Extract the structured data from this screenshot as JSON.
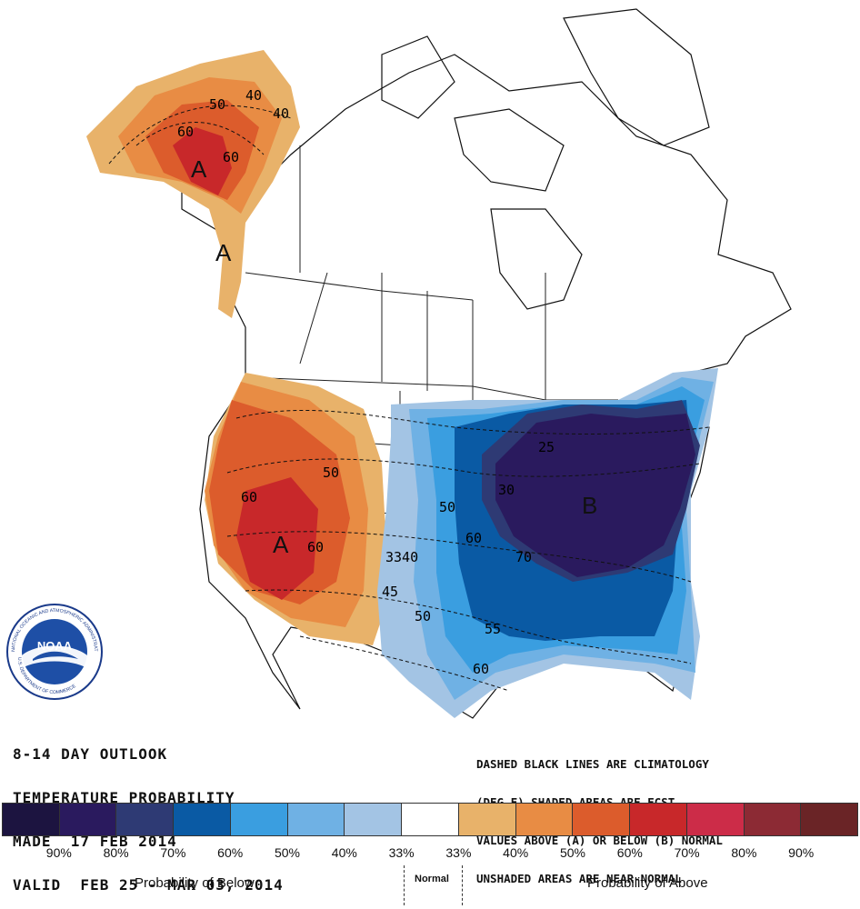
{
  "title_lines": [
    "8-14 DAY OUTLOOK",
    "TEMPERATURE PROBABILITY",
    "MADE  17 FEB 2014",
    "VALID  FEB 25 - MAR 03, 2014"
  ],
  "legend_note_lines": [
    "DASHED BLACK LINES ARE CLIMATOLOGY",
    "(DEG F) SHADED AREAS ARE FCST",
    "VALUES ABOVE (A) OR BELOW (B) NORMAL",
    "UNSHADED AREAS ARE NEAR-NORMAL"
  ],
  "logo": {
    "center_text": "NOAA",
    "ring_text": "NATIONAL OCEANIC AND ATMOSPHERIC ADMINISTRATION",
    "ring_text_bottom": "U.S. DEPARTMENT OF COMMERCE"
  },
  "map_letters": {
    "alaska_above_1": "A",
    "alaska_above_2": "A",
    "west_above": "A",
    "east_below": "B"
  },
  "map_contour_labels": {
    "ak_50": "50",
    "ak_40": "40",
    "ak_60a": "60",
    "ak_60b": "60",
    "ak_40b": "40",
    "west_50": "50",
    "west_60a": "60",
    "west_60b": "60",
    "west_45": "45",
    "mid_3340": "3340",
    "mid_50": "50",
    "mid_60": "60",
    "mid_70": "70",
    "mid_50b": "50",
    "south_55": "55",
    "south_60": "60",
    "east_30": "30",
    "east_25": "25"
  },
  "colorbar": {
    "colors": [
      "#1c1440",
      "#2a1a5e",
      "#2e3a74",
      "#0a5aa4",
      "#3a9ee0",
      "#6fb1e4",
      "#a3c4e4",
      "#ffffff",
      "#e8b26a",
      "#e88c44",
      "#dc5c2c",
      "#c8282a",
      "#cc2c48",
      "#8c2a34",
      "#6a2426"
    ],
    "percent_labels": [
      "90%",
      "80%",
      "70%",
      "60%",
      "50%",
      "40%",
      "33%",
      "33%",
      "40%",
      "50%",
      "60%",
      "70%",
      "80%",
      "90%"
    ],
    "caption_below": "Probability of Below",
    "caption_normal": "Normal",
    "caption_above": "Probability of Above"
  }
}
